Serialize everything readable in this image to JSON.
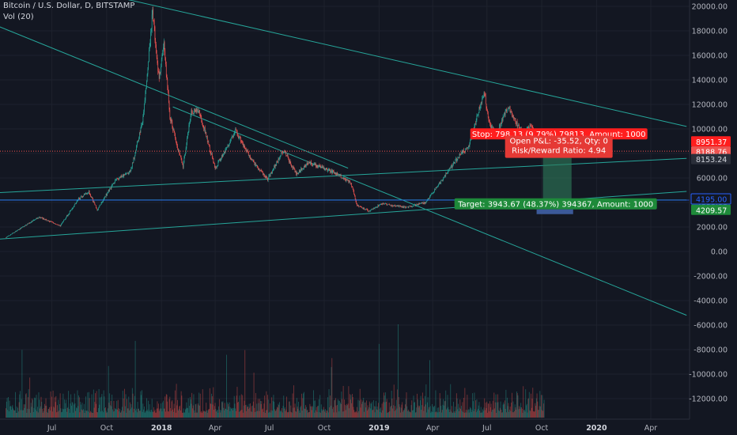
{
  "header": {
    "symbol": "Bitcoin / U.S. Dollar, D, BITSTAMP",
    "indicator": "Vol (20)"
  },
  "colors": {
    "background": "#131722",
    "trendline": "#26a69a",
    "candle_up": "#26a69a",
    "candle_down": "#ef5350",
    "stop_zone": "#ff1e1e",
    "target_zone": "#2e7d5b",
    "axis_text": "#b2b5be"
  },
  "chart_data": {
    "type": "candlestick",
    "price_axis": {
      "ylim": [
        -14000,
        20500
      ],
      "ticks": [
        "20000.00",
        "18000.00",
        "16000.00",
        "14000.00",
        "12000.00",
        "10000.00",
        "8000.00",
        "6000.00",
        "4000.00",
        "2000.00",
        "0.00",
        "-2000.00",
        "-4000.00",
        "-6000.00",
        "-8000.00",
        "-10000.00",
        "-12000.00"
      ],
      "tick_values": [
        20000,
        18000,
        16000,
        14000,
        12000,
        10000,
        8000,
        6000,
        4000,
        2000,
        0,
        -2000,
        -4000,
        -6000,
        -8000,
        -10000,
        -12000
      ]
    },
    "time_axis": {
      "labels": [
        {
          "text": "Jul",
          "x": "2017-07-01"
        },
        {
          "text": "Oct",
          "x": "2017-10-01"
        },
        {
          "text": "2018",
          "x": "2018-01-01",
          "bold": true
        },
        {
          "text": "Apr",
          "x": "2018-04-01"
        },
        {
          "text": "Jul",
          "x": "2018-07-01"
        },
        {
          "text": "Oct",
          "x": "2018-10-01"
        },
        {
          "text": "2019",
          "x": "2019-01-01",
          "bold": true
        },
        {
          "text": "Apr",
          "x": "2019-04-01"
        },
        {
          "text": "Jul",
          "x": "2019-07-01"
        },
        {
          "text": "Oct",
          "x": "2019-10-01"
        },
        {
          "text": "2020",
          "x": "2020-01-01",
          "bold": true
        },
        {
          "text": "Apr",
          "x": "2020-04-01"
        }
      ]
    },
    "price_path": [
      [
        "2017-04-15",
        1150
      ],
      [
        "2017-05-20",
        2200
      ],
      [
        "2017-06-10",
        2800
      ],
      [
        "2017-07-15",
        2100
      ],
      [
        "2017-08-15",
        4300
      ],
      [
        "2017-09-01",
        4900
      ],
      [
        "2017-09-15",
        3400
      ],
      [
        "2017-10-15",
        5800
      ],
      [
        "2017-11-10",
        6500
      ],
      [
        "2017-12-01",
        10800
      ],
      [
        "2017-12-17",
        19500
      ],
      [
        "2017-12-28",
        14000
      ],
      [
        "2018-01-05",
        17000
      ],
      [
        "2018-01-15",
        11000
      ],
      [
        "2018-02-06",
        6900
      ],
      [
        "2018-02-20",
        11400
      ],
      [
        "2018-03-05",
        11500
      ],
      [
        "2018-04-01",
        6800
      ],
      [
        "2018-04-15",
        8000
      ],
      [
        "2018-05-05",
        9800
      ],
      [
        "2018-06-01",
        7500
      ],
      [
        "2018-06-28",
        5900
      ],
      [
        "2018-07-25",
        8300
      ],
      [
        "2018-08-15",
        6300
      ],
      [
        "2018-09-05",
        7300
      ],
      [
        "2018-10-15",
        6500
      ],
      [
        "2018-11-15",
        5600
      ],
      [
        "2018-11-25",
        3800
      ],
      [
        "2018-12-15",
        3300
      ],
      [
        "2019-01-05",
        3900
      ],
      [
        "2019-02-15",
        3600
      ],
      [
        "2019-03-20",
        4000
      ],
      [
        "2019-04-03",
        4900
      ],
      [
        "2019-05-15",
        7800
      ],
      [
        "2019-06-01",
        8600
      ],
      [
        "2019-06-26",
        13000
      ],
      [
        "2019-07-05",
        10500
      ],
      [
        "2019-07-15",
        9500
      ],
      [
        "2019-08-05",
        11800
      ],
      [
        "2019-08-30",
        9600
      ],
      [
        "2019-09-15",
        10300
      ],
      [
        "2019-09-25",
        8100
      ],
      [
        "2019-10-05",
        8189
      ]
    ],
    "trendlines": [
      {
        "from": [
          "2017-04-01",
          18400
        ],
        "to": [
          "2018-11-10",
          6800
        ]
      },
      {
        "from": [
          "2017-11-01",
          20600
        ],
        "to": [
          "2020-05-31",
          10200
        ]
      },
      {
        "from": [
          "2018-01-20",
          11800
        ],
        "to": [
          "2020-05-31",
          -5200
        ]
      },
      {
        "from": [
          "2017-04-01",
          4800
        ],
        "to": [
          "2020-05-31",
          7600
        ]
      },
      {
        "from": [
          "2017-04-01",
          1000
        ],
        "to": [
          "2020-05-31",
          4900
        ]
      },
      {
        "from": [
          "2017-04-01",
          4200
        ],
        "to": [
          "2020-05-31",
          4200
        ]
      }
    ],
    "position": {
      "entry": 8153.24,
      "stop": 8951.37,
      "target": 4209.57,
      "start": "2019-10-03",
      "end": "2019-11-20",
      "stop_label": "Stop: 798.13 (9.79%) 79813, Amount: 1000",
      "pnl_label": "Open P&L: -35.52, Qty: 0",
      "rr_label": "Risk/Reward Ratio: 4.94",
      "target_label": "Target: 3943.67 (48.37%) 394367, Amount: 1000"
    },
    "price_tags": [
      {
        "text": "8951.37",
        "value": 8951.37,
        "bg": "#ff1e1e",
        "fg": "#ffffff"
      },
      {
        "text": "8188.76",
        "value": 8188.76,
        "bg": "#ef5350",
        "fg": "#ffffff"
      },
      {
        "text": "8153.24",
        "value": 8153.24,
        "bg": "#2a2e39",
        "fg": "#d1d4dc"
      },
      {
        "text": "4195.00",
        "value": 4195.0,
        "bg": "#131722",
        "fg": "#2962ff",
        "border": "#2962ff"
      },
      {
        "text": "4209.57",
        "value": 4209.57,
        "bg": "#1e8a3a",
        "fg": "#ffffff"
      }
    ]
  }
}
